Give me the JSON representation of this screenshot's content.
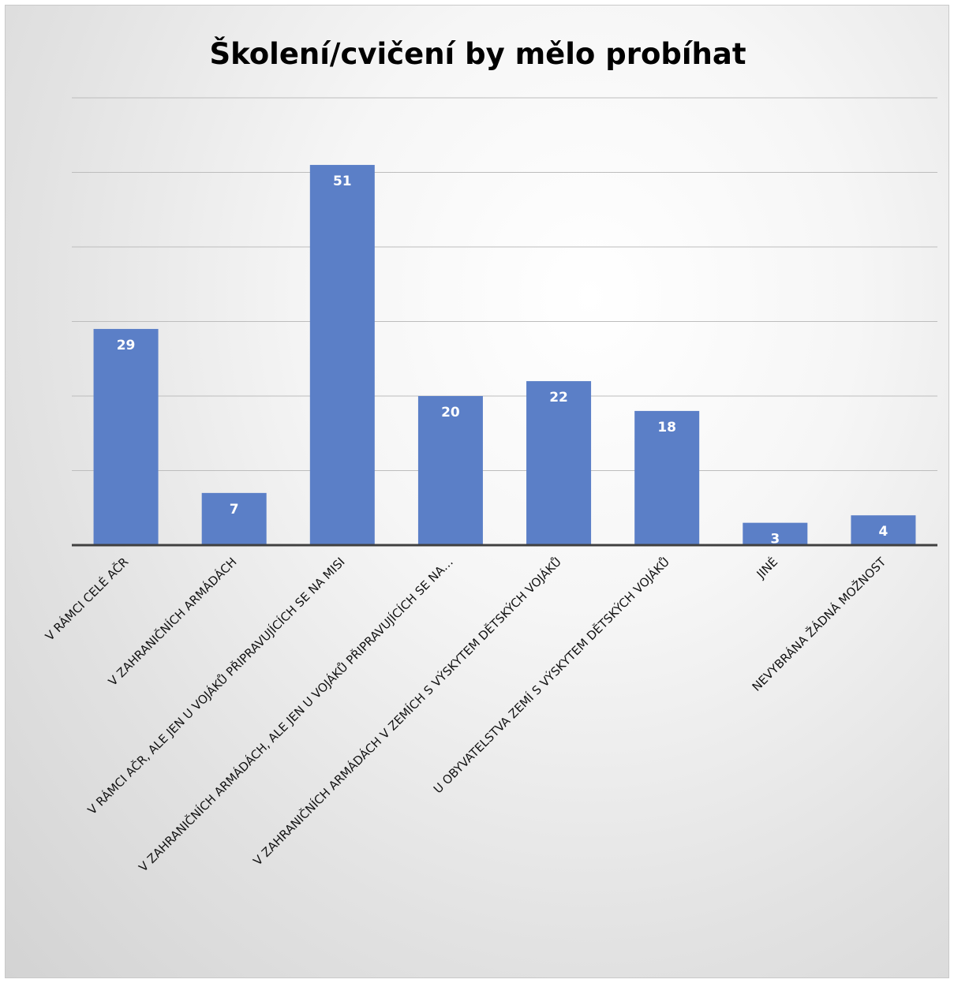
{
  "chart_data": {
    "type": "bar",
    "title": "Školení/cvičení by mělo probíhat",
    "categories": [
      "V RÁMCI CELÉ AČR",
      "V ZAHRANIČNÍCH ARMÁDÁCH",
      "V RÁMCI AČR, ALE JEN U VOJÁKŮ PŘIPRAVUJÍCÍCH SE NA  MISI",
      "V ZAHRANIČNÍCH ARMÁDÁCH, ALE JEN U VOJÁKŮ PŘIPRAVUJÍCÍCH SE NA…",
      "V ZAHRANIČNÍCH ARMÁDÁCH V ZEMÍCH S VÝSKYTEM DĚTSKÝCH VOJÁKŮ",
      "U OBYVATELSTVA ZEMÍ S VÝSKYTEM DĚTSKÝCH VOJÁKŮ",
      "JINÉ",
      "NEVYBRÁNA ŽÁDNÁ MOŽNOST"
    ],
    "values": [
      29,
      7,
      51,
      20,
      22,
      18,
      3,
      4
    ],
    "ylim": [
      0,
      60
    ],
    "grid": true,
    "bar_color": "#5B7FC7",
    "data_labels": true,
    "legend": "none"
  }
}
